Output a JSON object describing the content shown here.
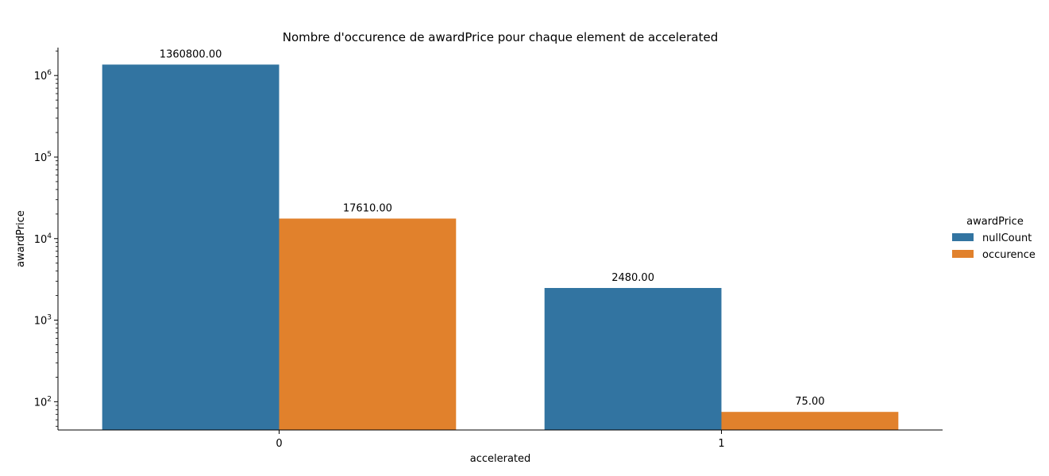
{
  "chart_data": {
    "type": "bar",
    "title": "Nombre d'occurence de awardPrice pour chaque element de accelerated",
    "xlabel": "accelerated",
    "ylabel": "awardPrice",
    "yscale": "log",
    "ylim": [
      45,
      2200000
    ],
    "y_ticks": [
      {
        "value": 100,
        "base": "10",
        "exp": "2"
      },
      {
        "value": 1000,
        "base": "10",
        "exp": "3"
      },
      {
        "value": 10000,
        "base": "10",
        "exp": "4"
      },
      {
        "value": 100000,
        "base": "10",
        "exp": "5"
      },
      {
        "value": 1000000,
        "base": "10",
        "exp": "6"
      }
    ],
    "categories": [
      "0",
      "1"
    ],
    "series": [
      {
        "name": "nullCount",
        "color": "#3274a1",
        "values": [
          1360800,
          2480
        ],
        "labels": [
          "1360800.00",
          "2480.00"
        ]
      },
      {
        "name": "occurence",
        "color": "#e1812c",
        "values": [
          17610,
          75
        ],
        "labels": [
          "17610.00",
          "75.00"
        ]
      }
    ],
    "legend": {
      "title": "awardPrice",
      "placement": "right"
    },
    "grid": false
  }
}
